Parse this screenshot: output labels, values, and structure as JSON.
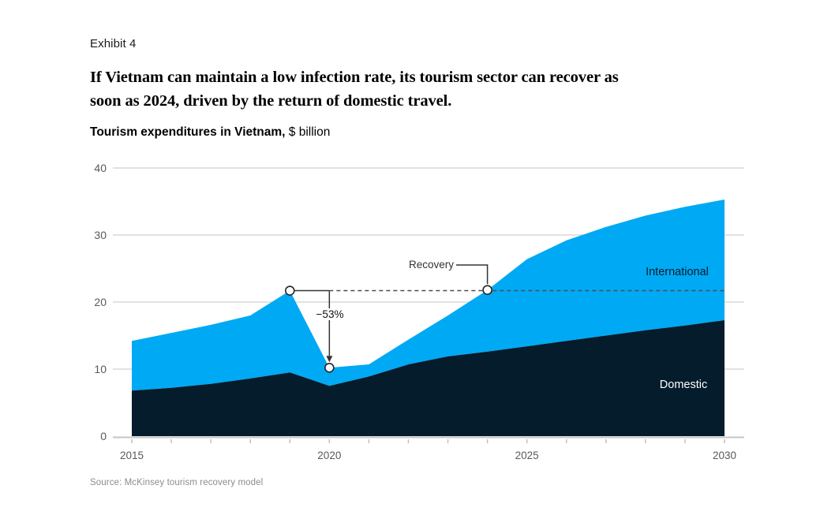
{
  "header": {
    "exhibit": "Exhibit 4",
    "title_lines": [
      "If Vietnam can maintain a low infection rate, its tourism sector can recover as",
      "soon as 2024, driven by the return of domestic travel."
    ],
    "subtitle_bold": "Tourism expenditures in Vietnam,",
    "subtitle_unit": " $ billion"
  },
  "chart_data": {
    "type": "area",
    "stacked": true,
    "title": "Tourism expenditures in Vietnam, $ billion",
    "x": [
      2015,
      2016,
      2017,
      2018,
      2019,
      2020,
      2021,
      2022,
      2023,
      2024,
      2025,
      2026,
      2027,
      2028,
      2029,
      2030
    ],
    "series": [
      {
        "name": "Domestic",
        "color": "#051C2C",
        "values": [
          6.8,
          7.2,
          7.8,
          8.6,
          9.5,
          7.5,
          8.9,
          10.7,
          11.9,
          12.6,
          13.4,
          14.2,
          15.0,
          15.8,
          16.5,
          17.3
        ]
      },
      {
        "name": "International",
        "color": "#00A9F4",
        "values": [
          7.4,
          8.2,
          8.8,
          9.4,
          12.2,
          2.7,
          1.8,
          3.7,
          6.1,
          9.2,
          13.0,
          15.0,
          16.2,
          17.1,
          17.7,
          18.0
        ]
      }
    ],
    "totals": [
      14.2,
      15.4,
      16.6,
      18.0,
      21.7,
      10.2,
      10.7,
      14.4,
      18.0,
      21.8,
      26.4,
      29.2,
      31.2,
      32.9,
      34.2,
      35.3
    ],
    "ylim": [
      0,
      40
    ],
    "yticks": [
      0,
      10,
      20,
      30,
      40
    ],
    "xtick_labels": [
      2015,
      2020,
      2025,
      2030
    ],
    "grid": "horizontal",
    "legend_position": "in-plot labels",
    "series_labels": {
      "international": "International",
      "domestic": "Domestic"
    },
    "annotations": {
      "peak": {
        "year": 2019,
        "value": 21.7
      },
      "trough": {
        "year": 2020,
        "value": 10.2
      },
      "recovery_point": {
        "year": 2024,
        "value": 21.8
      },
      "dashed_level": 21.7,
      "drop_label": "−53%",
      "recovery_label": "Recovery"
    }
  },
  "source": "Source: McKinsey tourism recovery model"
}
